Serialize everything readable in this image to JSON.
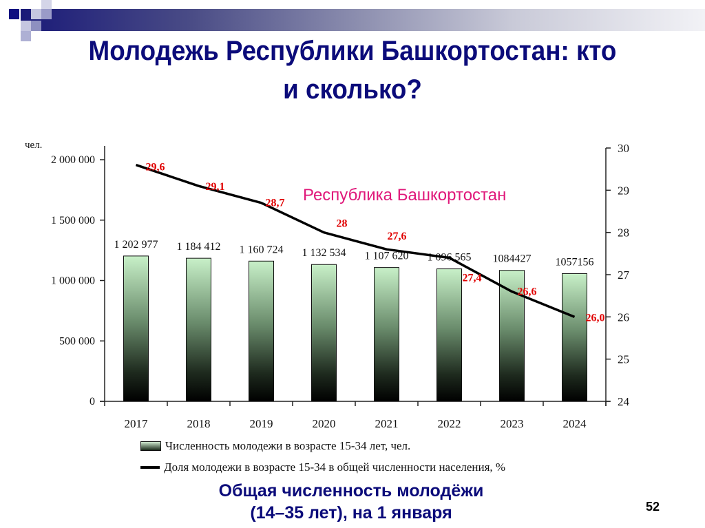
{
  "slide": {
    "title": "Молодежь Республики Башкортостан: кто и сколько?",
    "title_line1": "Молодежь Республики Башкортостан: кто",
    "title_line2": "и сколько?",
    "subtitle_line1": "Общая численность молодёжи",
    "subtitle_line2": "(14–35 лет), на 1 января",
    "page_number": "52",
    "colors": {
      "title": "#0b0b7a",
      "region_label": "#e0187a",
      "data_labels_pct": "#e00000",
      "line": "#000000",
      "bar_top": "#c8f0c8",
      "bar_bottom": "#000000"
    }
  },
  "chart_data": {
    "type": "bar+line",
    "title": "Республика Башкортостан",
    "categories": [
      "2017",
      "2018",
      "2019",
      "2020",
      "2021",
      "2022",
      "2023",
      "2024"
    ],
    "series": [
      {
        "name": "Численность молодежи в возрасте 15-34 лет, чел.",
        "type": "bar",
        "axis": "left",
        "values": [
          1202977,
          1184412,
          1160724,
          1132534,
          1107620,
          1096565,
          1084427,
          1057156
        ],
        "labels": [
          "1 202 977",
          "1 184 412",
          "1 160 724",
          "1 132 534",
          "1 107 620",
          "1 096 565",
          "1084427",
          "1057156"
        ]
      },
      {
        "name": "Доля молодежи в возрасте 15-34 в общей численности населения, %",
        "type": "line",
        "axis": "right",
        "values": [
          29.6,
          29.1,
          28.7,
          28.0,
          27.6,
          27.4,
          26.6,
          26.0
        ],
        "labels": [
          "29,6",
          "29,1",
          "28,7",
          "28",
          "27,6",
          "27,4",
          "26,6",
          "26,0"
        ]
      }
    ],
    "left_axis": {
      "unit_label": "чел.",
      "ylim": [
        0,
        2000000
      ],
      "ticks": [
        "0",
        "500 000",
        "1 000 000",
        "1 500 000",
        "2 000 000"
      ],
      "tick_values": [
        0,
        500000,
        1000000,
        1500000,
        2000000
      ]
    },
    "right_axis": {
      "ylim": [
        24,
        30
      ],
      "ticks": [
        "24",
        "25",
        "26",
        "27",
        "28",
        "29",
        "30"
      ],
      "tick_values": [
        24,
        25,
        26,
        27,
        28,
        29,
        30
      ]
    },
    "legend": [
      {
        "type": "bar",
        "label": "Численность молодежи в возрасте 15-34 лет, чел."
      },
      {
        "type": "line",
        "label": "Доля молодежи в возрасте 15-34 в общей численности населения, %"
      }
    ],
    "legend_position": "bottom",
    "grid": false
  }
}
